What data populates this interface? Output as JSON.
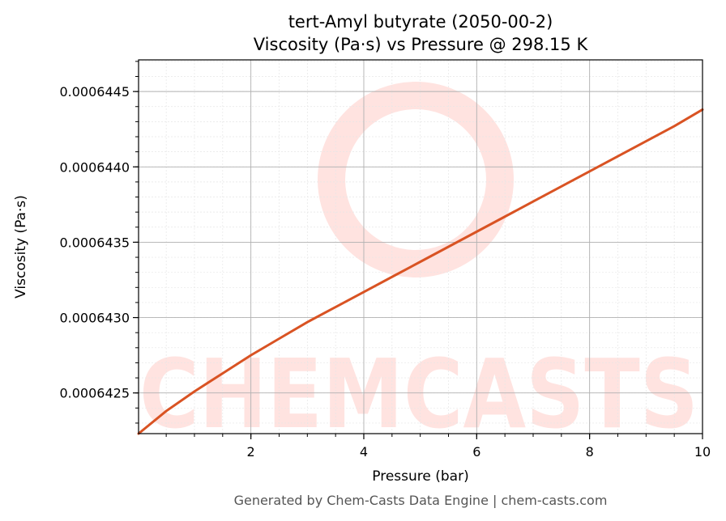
{
  "chart_data": {
    "type": "line",
    "title": "tert-Amyl butyrate (2050-00-2)",
    "subtitle": "Viscosity (Pa·s) vs Pressure @ 298.15 K",
    "xlabel": "Pressure (bar)",
    "ylabel": "Viscosity (Pa·s)",
    "xlim": [
      0.01,
      10
    ],
    "ylim": [
      0.00064223,
      0.00064471
    ],
    "x_ticks": [
      2,
      4,
      6,
      8,
      10
    ],
    "x_tick_labels": [
      "2",
      "4",
      "6",
      "8",
      "10"
    ],
    "y_ticks": [
      0.0006425,
      0.000643,
      0.0006435,
      0.000644,
      0.0006445
    ],
    "y_tick_labels": [
      "0.0006425",
      "0.0006430",
      "0.0006435",
      "0.0006440",
      "0.0006445"
    ],
    "grid": true,
    "series": [
      {
        "color": "#d95323",
        "x": [
          0.01,
          0.5,
          1,
          1.5,
          2,
          2.5,
          3,
          3.5,
          4,
          4.5,
          5,
          5.5,
          6,
          6.5,
          7,
          7.5,
          8,
          8.5,
          9,
          9.5,
          10
        ],
        "y": [
          0.00064223,
          0.00064238,
          0.00064251,
          0.00064263,
          0.00064275,
          0.00064286,
          0.00064297,
          0.00064307,
          0.00064317,
          0.00064327,
          0.00064337,
          0.00064347,
          0.00064357,
          0.00064367,
          0.00064377,
          0.00064387,
          0.00064397,
          0.00064407,
          0.00064417,
          0.00064427,
          0.00064438
        ]
      }
    ]
  },
  "watermark": {
    "text": "CHEMCASTS",
    "color": "#ffe3e0"
  },
  "footer": "Generated by Chem-Casts Data Engine | chem-casts.com"
}
